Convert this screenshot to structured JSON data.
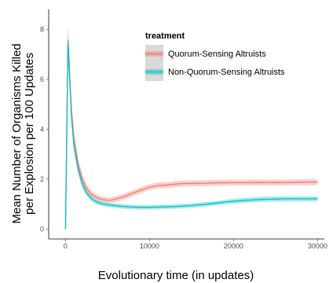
{
  "chart_data": {
    "type": "line",
    "xlabel": "Evolutionary time (in updates)",
    "ylabel_lines": [
      "Mean Number of Organisms Killed",
      "per Explosion per 100 Updates"
    ],
    "xlim": [
      -2000,
      30800
    ],
    "ylim": [
      -0.4,
      8.8
    ],
    "x_ticks": [
      0,
      10000,
      20000,
      30000
    ],
    "x_tick_labels": [
      "0",
      "10000",
      "20000",
      "30000"
    ],
    "y_ticks": [
      0,
      2,
      4,
      6,
      8
    ],
    "y_tick_labels": [
      "0",
      "2",
      "4",
      "6",
      "8"
    ],
    "grid": false,
    "legend": {
      "title": "treatment",
      "position": "top-right"
    },
    "series": [
      {
        "name": "Quorum-Sensing Altruists",
        "color": "#F8766D",
        "band_color": "#F8766D",
        "x": [
          0,
          300,
          500,
          700,
          1000,
          1500,
          2000,
          2500,
          3000,
          3500,
          4000,
          4500,
          5000,
          5500,
          6000,
          7000,
          8000,
          9000,
          10000,
          11000,
          12000,
          13000,
          14000,
          15000,
          16000,
          17000,
          18000,
          19000,
          20000,
          21000,
          22000,
          23000,
          24000,
          25000,
          26000,
          27000,
          28000,
          29000,
          30000
        ],
        "y": [
          0,
          7.6,
          6.2,
          4.8,
          3.6,
          2.6,
          2.0,
          1.65,
          1.42,
          1.3,
          1.22,
          1.17,
          1.15,
          1.16,
          1.2,
          1.3,
          1.43,
          1.56,
          1.68,
          1.74,
          1.76,
          1.8,
          1.82,
          1.83,
          1.83,
          1.84,
          1.85,
          1.85,
          1.86,
          1.86,
          1.86,
          1.87,
          1.86,
          1.87,
          1.86,
          1.87,
          1.87,
          1.88,
          1.88
        ],
        "band": [
          0.3,
          0.6,
          0.5,
          0.4,
          0.3,
          0.22,
          0.18,
          0.15,
          0.13,
          0.12,
          0.11,
          0.11,
          0.11,
          0.11,
          0.12,
          0.12,
          0.12,
          0.12,
          0.12,
          0.12,
          0.12,
          0.12,
          0.12,
          0.12,
          0.12,
          0.12,
          0.12,
          0.12,
          0.12,
          0.12,
          0.12,
          0.12,
          0.12,
          0.12,
          0.12,
          0.12,
          0.12,
          0.12,
          0.12
        ]
      },
      {
        "name": "Non-Quorum-Sensing Altruists",
        "color": "#00BFC4",
        "band_color": "#00BFC4",
        "x": [
          0,
          300,
          500,
          700,
          1000,
          1500,
          2000,
          2500,
          3000,
          3500,
          4000,
          4500,
          5000,
          5500,
          6000,
          7000,
          8000,
          9000,
          10000,
          11000,
          12000,
          13000,
          14000,
          15000,
          16000,
          17000,
          18000,
          19000,
          20000,
          21000,
          22000,
          23000,
          24000,
          25000,
          26000,
          27000,
          28000,
          29000,
          30000
        ],
        "y": [
          0,
          7.5,
          6.0,
          4.6,
          3.4,
          2.4,
          1.8,
          1.45,
          1.25,
          1.12,
          1.05,
          1.0,
          0.97,
          0.95,
          0.93,
          0.9,
          0.88,
          0.87,
          0.87,
          0.88,
          0.89,
          0.9,
          0.92,
          0.94,
          0.97,
          1.0,
          1.04,
          1.08,
          1.11,
          1.14,
          1.16,
          1.18,
          1.19,
          1.2,
          1.21,
          1.21,
          1.21,
          1.21,
          1.21
        ],
        "band": [
          0.3,
          0.6,
          0.5,
          0.4,
          0.3,
          0.2,
          0.16,
          0.13,
          0.11,
          0.1,
          0.09,
          0.09,
          0.09,
          0.09,
          0.09,
          0.09,
          0.09,
          0.09,
          0.09,
          0.09,
          0.09,
          0.09,
          0.09,
          0.09,
          0.09,
          0.09,
          0.09,
          0.09,
          0.1,
          0.1,
          0.1,
          0.1,
          0.1,
          0.1,
          0.1,
          0.1,
          0.1,
          0.1,
          0.1
        ]
      }
    ]
  }
}
